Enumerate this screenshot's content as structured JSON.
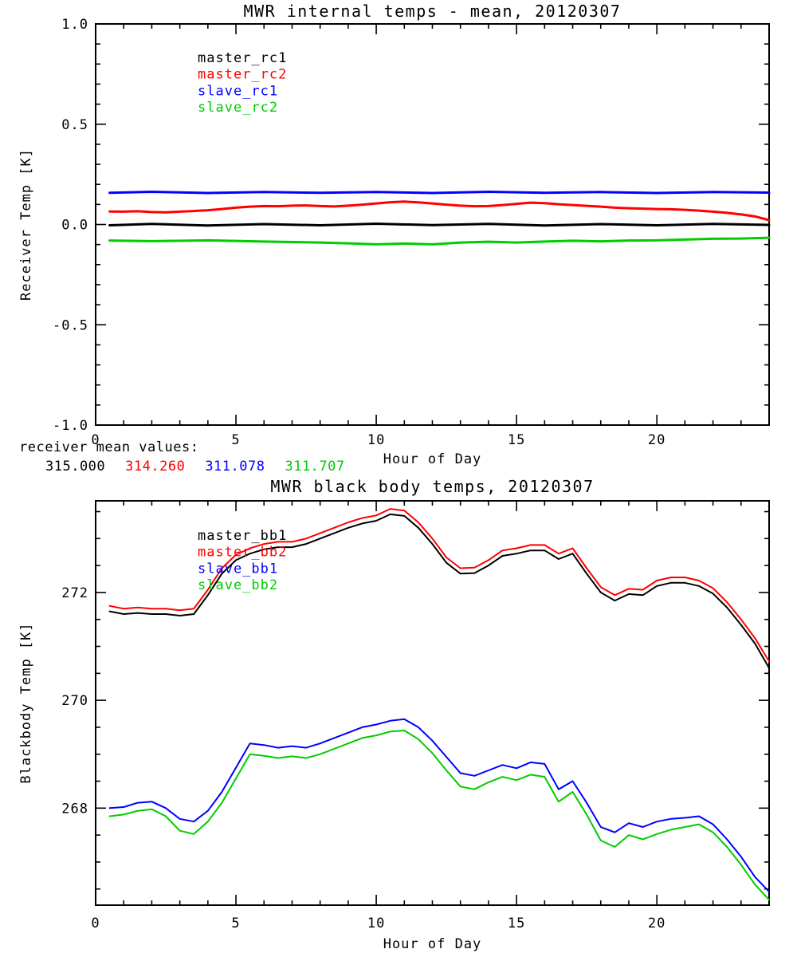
{
  "figure": {
    "background": "#ffffff"
  },
  "annotation": {
    "label": "receiver mean values:",
    "values": [
      {
        "text": "315.000",
        "color": "#000000"
      },
      {
        "text": "314.260",
        "color": "#ff0000"
      },
      {
        "text": "311.078",
        "color": "#0000ff"
      },
      {
        "text": "311.707",
        "color": "#00cc00"
      }
    ]
  },
  "chart_data": [
    {
      "type": "line",
      "title": "MWR internal temps - mean, 20120307",
      "xlabel": "Hour of Day",
      "ylabel": "Receiver Temp [K]",
      "xlim": [
        0,
        24
      ],
      "ylim": [
        -1.0,
        1.0
      ],
      "xticks": [
        0,
        5,
        10,
        15,
        20
      ],
      "xtick_labels": [
        "0",
        "5",
        "10",
        "15",
        "20"
      ],
      "xminor": 1,
      "yticks": [
        -1.0,
        -0.5,
        0.0,
        0.5,
        1.0
      ],
      "ytick_labels": [
        "-1.0",
        "-0.5",
        "0.0",
        "0.5",
        "1.0"
      ],
      "yminor": 0.1,
      "grid": false,
      "legend_position": "inside-top-left",
      "legend": [
        {
          "label": "master_rc1",
          "color": "#000000"
        },
        {
          "label": "master_rc2",
          "color": "#ff0000"
        },
        {
          "label": "slave_rc1",
          "color": "#0000ff"
        },
        {
          "label": "slave_rc2",
          "color": "#00cc00"
        }
      ],
      "series": [
        {
          "name": "master_rc1",
          "color": "#000000",
          "x": [
            0.5,
            2,
            4,
            6,
            8,
            10,
            12,
            14,
            16,
            18,
            20,
            22,
            24
          ],
          "y": [
            -0.004,
            0.003,
            -0.005,
            0.002,
            -0.004,
            0.004,
            -0.003,
            0.003,
            -0.005,
            0.002,
            -0.004,
            0.003,
            -0.002
          ]
        },
        {
          "name": "master_rc2",
          "color": "#ff0000",
          "x": [
            0.5,
            1,
            1.5,
            2,
            2.5,
            3,
            3.5,
            4,
            4.5,
            5,
            5.5,
            6,
            6.5,
            7,
            7.5,
            8,
            8.5,
            9,
            9.5,
            10,
            10.5,
            11,
            11.5,
            12,
            12.5,
            13,
            13.5,
            14,
            14.5,
            15,
            15.5,
            16,
            16.5,
            17,
            17.5,
            18,
            18.5,
            19,
            19.5,
            20,
            20.5,
            21,
            21.5,
            22,
            22.5,
            23,
            23.5,
            24
          ],
          "y": [
            0.065,
            0.064,
            0.066,
            0.062,
            0.061,
            0.064,
            0.067,
            0.071,
            0.077,
            0.084,
            0.089,
            0.092,
            0.091,
            0.094,
            0.095,
            0.092,
            0.09,
            0.094,
            0.099,
            0.105,
            0.111,
            0.114,
            0.11,
            0.105,
            0.099,
            0.094,
            0.091,
            0.092,
            0.097,
            0.103,
            0.109,
            0.106,
            0.101,
            0.097,
            0.093,
            0.089,
            0.084,
            0.081,
            0.079,
            0.077,
            0.076,
            0.073,
            0.069,
            0.064,
            0.058,
            0.05,
            0.04,
            0.022
          ]
        },
        {
          "name": "slave_rc1",
          "color": "#0000ff",
          "x": [
            0.5,
            2,
            4,
            6,
            8,
            10,
            12,
            14,
            16,
            18,
            20,
            22,
            24
          ],
          "y": [
            0.158,
            0.163,
            0.157,
            0.162,
            0.158,
            0.162,
            0.157,
            0.163,
            0.158,
            0.162,
            0.157,
            0.162,
            0.159
          ]
        },
        {
          "name": "slave_rc2",
          "color": "#00cc00",
          "x": [
            0.5,
            2,
            4,
            6,
            8,
            9,
            10,
            11,
            12,
            13,
            14,
            15,
            16,
            17,
            18,
            19,
            20,
            21,
            22,
            23,
            24
          ],
          "y": [
            -0.08,
            -0.083,
            -0.079,
            -0.085,
            -0.09,
            -0.094,
            -0.099,
            -0.095,
            -0.099,
            -0.09,
            -0.086,
            -0.09,
            -0.085,
            -0.081,
            -0.084,
            -0.08,
            -0.079,
            -0.075,
            -0.071,
            -0.07,
            -0.066
          ]
        }
      ]
    },
    {
      "type": "line",
      "title": "MWR black body temps, 20120307",
      "xlabel": "Hour of Day",
      "ylabel": "Blackbody Temp [K]",
      "xlim": [
        0,
        24
      ],
      "ylim": [
        266.2,
        273.7
      ],
      "xticks": [
        0,
        5,
        10,
        15,
        20
      ],
      "xtick_labels": [
        "0",
        "5",
        "10",
        "15",
        "20"
      ],
      "xminor": 1,
      "yticks": [
        268,
        270,
        272
      ],
      "ytick_labels": [
        "268",
        "270",
        "272"
      ],
      "yminor": 0.5,
      "grid": false,
      "legend_position": "inside-top-left",
      "legend": [
        {
          "label": "master_bb1",
          "color": "#000000"
        },
        {
          "label": "master_bb2",
          "color": "#ff0000"
        },
        {
          "label": "slave_bb1",
          "color": "#0000ff"
        },
        {
          "label": "slave_bb2",
          "color": "#00cc00"
        }
      ],
      "x": [
        0.5,
        1,
        1.5,
        2,
        2.5,
        3,
        3.5,
        4,
        4.5,
        5,
        5.5,
        6,
        6.5,
        7,
        7.5,
        8,
        8.5,
        9,
        9.5,
        10,
        10.5,
        11,
        11.5,
        12,
        12.5,
        13,
        13.5,
        14,
        14.5,
        15,
        15.5,
        16,
        16.5,
        17,
        17.5,
        18,
        18.5,
        19,
        19.5,
        20,
        20.5,
        21,
        21.5,
        22,
        22.5,
        23,
        23.5,
        24
      ],
      "series": [
        {
          "name": "master_bb1",
          "color": "#000000",
          "y": [
            271.65,
            271.6,
            271.62,
            271.6,
            271.6,
            271.57,
            271.6,
            271.95,
            272.35,
            272.6,
            272.72,
            272.8,
            272.84,
            272.84,
            272.9,
            273.0,
            273.1,
            273.2,
            273.28,
            273.33,
            273.45,
            273.42,
            273.2,
            272.9,
            272.55,
            272.35,
            272.36,
            272.5,
            272.68,
            272.72,
            272.78,
            272.78,
            272.62,
            272.72,
            272.35,
            272.0,
            271.85,
            271.97,
            271.95,
            272.12,
            272.18,
            272.18,
            272.12,
            271.98,
            271.72,
            271.4,
            271.05,
            270.6
          ]
        },
        {
          "name": "master_bb2",
          "color": "#ff0000",
          "y": [
            271.75,
            271.7,
            271.72,
            271.7,
            271.7,
            271.67,
            271.7,
            272.05,
            272.45,
            272.7,
            272.82,
            272.9,
            272.94,
            272.94,
            273.0,
            273.1,
            273.2,
            273.3,
            273.38,
            273.43,
            273.55,
            273.52,
            273.3,
            273.0,
            272.65,
            272.45,
            272.46,
            272.6,
            272.78,
            272.82,
            272.88,
            272.88,
            272.72,
            272.82,
            272.45,
            272.1,
            271.95,
            272.07,
            272.05,
            272.22,
            272.28,
            272.28,
            272.22,
            272.08,
            271.82,
            271.5,
            271.15,
            270.72
          ]
        },
        {
          "name": "slave_bb1",
          "color": "#0000ff",
          "y": [
            268.0,
            268.02,
            268.1,
            268.12,
            268.0,
            267.8,
            267.75,
            267.95,
            268.3,
            268.75,
            269.2,
            269.17,
            269.12,
            269.15,
            269.12,
            269.2,
            269.3,
            269.4,
            269.5,
            269.55,
            269.62,
            269.65,
            269.5,
            269.25,
            268.95,
            268.65,
            268.6,
            268.7,
            268.8,
            268.74,
            268.85,
            268.82,
            268.35,
            268.5,
            268.1,
            267.65,
            267.55,
            267.72,
            267.65,
            267.75,
            267.8,
            267.82,
            267.85,
            267.7,
            267.42,
            267.1,
            266.72,
            266.45
          ]
        },
        {
          "name": "slave_bb2",
          "color": "#00cc00",
          "y": [
            267.85,
            267.88,
            267.95,
            267.98,
            267.85,
            267.58,
            267.52,
            267.75,
            268.1,
            268.55,
            269.0,
            268.97,
            268.93,
            268.96,
            268.93,
            269.0,
            269.1,
            269.2,
            269.3,
            269.35,
            269.42,
            269.44,
            269.28,
            269.02,
            268.7,
            268.4,
            268.35,
            268.48,
            268.58,
            268.52,
            268.62,
            268.58,
            268.12,
            268.3,
            267.88,
            267.4,
            267.28,
            267.5,
            267.42,
            267.52,
            267.6,
            267.65,
            267.7,
            267.55,
            267.28,
            266.95,
            266.58,
            266.3
          ]
        }
      ]
    }
  ]
}
